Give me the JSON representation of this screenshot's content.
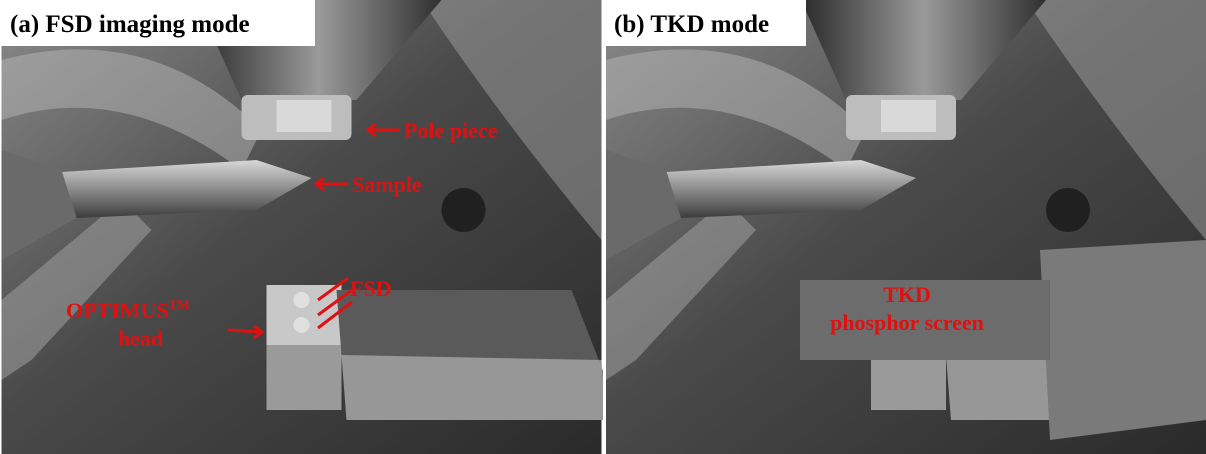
{
  "panels": [
    {
      "label": "(a) FSD imaging mode",
      "annotations": {
        "pole_piece": "Pole piece",
        "sample": "Sample",
        "fsd": "FSD",
        "optimus": "OPTIMUS",
        "trademark": "TM",
        "head": "head"
      }
    },
    {
      "label": "(b) TKD mode",
      "annotations": {
        "tkd": "TKD",
        "phosphor_screen": "phosphor screen"
      }
    }
  ]
}
